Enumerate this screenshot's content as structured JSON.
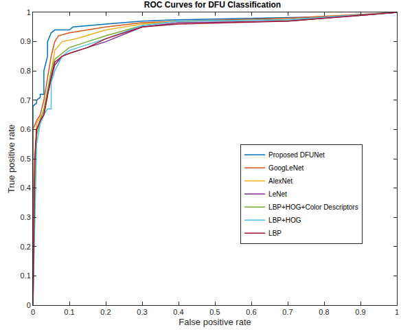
{
  "chart_data": {
    "type": "line",
    "title": "ROC Curves for DFU Classification",
    "x_label": "False positive rate",
    "y_label": "True positive rate",
    "xlim": [
      0,
      1
    ],
    "ylim": [
      0,
      1
    ],
    "xticks": [
      0,
      0.1,
      0.2,
      0.3,
      0.4,
      0.5,
      0.6,
      0.7,
      0.8,
      0.9,
      1
    ],
    "yticks": [
      0,
      0.1,
      0.2,
      0.3,
      0.4,
      0.5,
      0.6,
      0.7,
      0.8,
      0.9,
      1
    ],
    "grid": false,
    "legend": "right",
    "line_style": "solid",
    "series": [
      {
        "name": "Proposed DFUNet",
        "color": "#0072BD",
        "x": [
          0,
          0,
          0.01,
          0.01,
          0.02,
          0.02,
          0.03,
          0.03,
          0.04,
          0.04,
          0.05,
          0.06,
          0.1,
          0.11,
          0.2,
          0.3,
          0.4,
          0.6,
          0.8,
          0.9,
          1
        ],
        "values": [
          0,
          0.68,
          0.69,
          0.7,
          0.71,
          0.72,
          0.72,
          0.8,
          0.85,
          0.9,
          0.93,
          0.94,
          0.94,
          0.95,
          0.96,
          0.97,
          0.975,
          0.98,
          0.985,
          0.99,
          1
        ]
      },
      {
        "name": "GoogLeNet",
        "color": "#D95319",
        "x": [
          0,
          0,
          0.01,
          0.02,
          0.03,
          0.04,
          0.05,
          0.06,
          0.07,
          0.1,
          0.15,
          0.2,
          0.3,
          0.4,
          0.7,
          1
        ],
        "values": [
          0,
          0.6,
          0.63,
          0.65,
          0.7,
          0.78,
          0.85,
          0.9,
          0.92,
          0.93,
          0.94,
          0.95,
          0.965,
          0.97,
          0.98,
          1
        ]
      },
      {
        "name": "AlexNet",
        "color": "#EDB120",
        "x": [
          0,
          0.005,
          0.01,
          0.02,
          0.03,
          0.04,
          0.05,
          0.06,
          0.08,
          0.12,
          0.2,
          0.25,
          0.3,
          0.4,
          0.7,
          1
        ],
        "values": [
          0,
          0.5,
          0.62,
          0.64,
          0.66,
          0.72,
          0.8,
          0.87,
          0.9,
          0.91,
          0.94,
          0.95,
          0.96,
          0.97,
          0.975,
          1
        ]
      },
      {
        "name": "LeNet",
        "color": "#7E2F8E",
        "x": [
          0,
          0.005,
          0.01,
          0.02,
          0.03,
          0.04,
          0.05,
          0.06,
          0.08,
          0.1,
          0.15,
          0.2,
          0.3,
          0.4,
          0.7,
          0.8,
          1
        ],
        "values": [
          0,
          0.45,
          0.6,
          0.63,
          0.65,
          0.72,
          0.77,
          0.82,
          0.85,
          0.86,
          0.88,
          0.9,
          0.95,
          0.965,
          0.97,
          0.98,
          1
        ]
      },
      {
        "name": "LBP+HOG+Color Descriptors",
        "color": "#77AC30",
        "x": [
          0,
          0.005,
          0.01,
          0.02,
          0.03,
          0.04,
          0.05,
          0.06,
          0.08,
          0.1,
          0.15,
          0.2,
          0.3,
          0.4,
          0.7,
          1
        ],
        "values": [
          0,
          0.4,
          0.58,
          0.63,
          0.67,
          0.74,
          0.8,
          0.84,
          0.86,
          0.88,
          0.9,
          0.92,
          0.955,
          0.97,
          0.975,
          1
        ]
      },
      {
        "name": "LBP+HOG",
        "color": "#4DBEEE",
        "x": [
          0,
          0.005,
          0.01,
          0.02,
          0.03,
          0.04,
          0.05,
          0.05,
          0.06,
          0.08,
          0.1,
          0.15,
          0.2,
          0.3,
          0.4,
          0.7,
          1
        ],
        "values": [
          0,
          0.3,
          0.55,
          0.62,
          0.65,
          0.67,
          0.67,
          0.76,
          0.8,
          0.85,
          0.87,
          0.89,
          0.91,
          0.955,
          0.97,
          0.975,
          1
        ]
      },
      {
        "name": "LBP",
        "color": "#A2142F",
        "x": [
          0,
          0.005,
          0.01,
          0.02,
          0.03,
          0.04,
          0.05,
          0.06,
          0.08,
          0.1,
          0.15,
          0.2,
          0.3,
          0.4,
          0.7,
          1
        ],
        "values": [
          0,
          0.5,
          0.6,
          0.63,
          0.65,
          0.72,
          0.78,
          0.83,
          0.85,
          0.86,
          0.88,
          0.91,
          0.95,
          0.96,
          0.97,
          1
        ]
      }
    ]
  }
}
